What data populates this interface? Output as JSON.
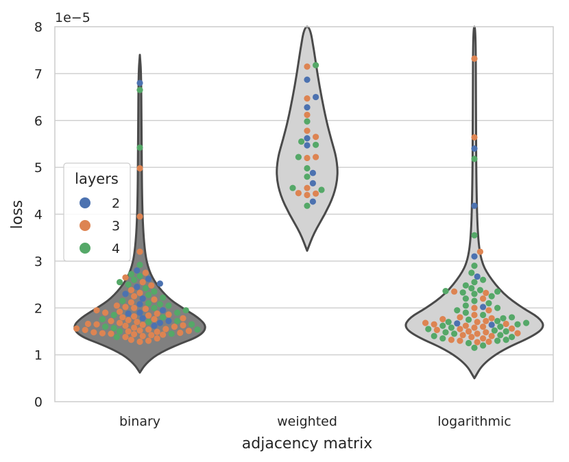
{
  "chart_data": {
    "type": "violin-swarm",
    "categories": [
      "binary",
      "weighted",
      "logarithmic"
    ],
    "xlabel": "adjacency matrix",
    "ylabel": "loss",
    "offset_label": "1e−5",
    "ylim": [
      0,
      8
    ],
    "yticks": [
      "0",
      "1",
      "2",
      "3",
      "4",
      "5",
      "6",
      "7",
      "8"
    ],
    "grid": true,
    "legend": {
      "title": "layers",
      "position": "left",
      "entries": [
        {
          "label": "2",
          "color": "#4c72b0"
        },
        {
          "label": "3",
          "color": "#dd8452"
        },
        {
          "label": "4",
          "color": "#55a868"
        }
      ]
    },
    "violins": [
      {
        "category": "binary",
        "fill": "#808080",
        "min": 0.62,
        "max": 7.4,
        "profile": [
          [
            0.62,
            0
          ],
          [
            0.8,
            8
          ],
          [
            1.0,
            24
          ],
          [
            1.2,
            52
          ],
          [
            1.4,
            88
          ],
          [
            1.6,
            98
          ],
          [
            1.8,
            85
          ],
          [
            2.0,
            62
          ],
          [
            2.2,
            42
          ],
          [
            2.5,
            24
          ],
          [
            2.8,
            13
          ],
          [
            3.2,
            7
          ],
          [
            4.0,
            3.5
          ],
          [
            5.5,
            2.5
          ],
          [
            7.0,
            2
          ],
          [
            7.4,
            0
          ]
        ]
      },
      {
        "category": "weighted",
        "fill": "#d3d3d3",
        "min": 3.22,
        "max": 8.0,
        "profile": [
          [
            3.22,
            0
          ],
          [
            3.6,
            10
          ],
          [
            4.0,
            26
          ],
          [
            4.4,
            39
          ],
          [
            4.8,
            45
          ],
          [
            5.2,
            43
          ],
          [
            5.6,
            35
          ],
          [
            6.0,
            28
          ],
          [
            6.5,
            21
          ],
          [
            7.0,
            15
          ],
          [
            7.5,
            10
          ],
          [
            8.0,
            4
          ]
        ]
      },
      {
        "category": "logarithmic",
        "fill": "#d3d3d3",
        "min": 0.5,
        "max": 8.0,
        "profile": [
          [
            0.5,
            0
          ],
          [
            0.8,
            12
          ],
          [
            1.1,
            40
          ],
          [
            1.4,
            86
          ],
          [
            1.6,
            103
          ],
          [
            1.8,
            94
          ],
          [
            2.0,
            70
          ],
          [
            2.3,
            42
          ],
          [
            2.7,
            20
          ],
          [
            3.0,
            10
          ],
          [
            3.5,
            5
          ],
          [
            4.5,
            3
          ],
          [
            6.0,
            2.2
          ],
          [
            8.0,
            2
          ]
        ]
      }
    ],
    "series": [
      {
        "name": "2",
        "color": "#4c72b0",
        "points": [
          {
            "category": "binary",
            "values": [
              6.8,
              2.8,
              2.62,
              2.52,
              2.45,
              2.3,
              2.2,
              2.08,
              1.95,
              1.9,
              1.88,
              1.78,
              1.72,
              1.68,
              1.62
            ]
          },
          {
            "category": "weighted",
            "values": [
              6.87,
              6.5,
              6.28,
              5.62,
              5.47,
              4.88,
              4.66,
              4.27
            ]
          },
          {
            "category": "logarithmic",
            "values": [
              5.4,
              4.18,
              3.1,
              2.67,
              2.02,
              1.67,
              1.64
            ]
          }
        ]
      },
      {
        "name": "3",
        "color": "#dd8452",
        "points": [
          {
            "category": "binary",
            "values": [
              4.98,
              3.95,
              3.2,
              2.75,
              2.65,
              2.55,
              2.48,
              2.38,
              2.32,
              2.25,
              2.18,
              2.12,
              2.05,
              2.02,
              2.0,
              1.98,
              1.95,
              1.92,
              1.9,
              1.88,
              1.86,
              1.84,
              1.82,
              1.8,
              1.78,
              1.76,
              1.74,
              1.72,
              1.7,
              1.68,
              1.66,
              1.65,
              1.64,
              1.63,
              1.62,
              1.6,
              1.58,
              1.56,
              1.55,
              1.54,
              1.53,
              1.52,
              1.51,
              1.5,
              1.49,
              1.48,
              1.47,
              1.46,
              1.45,
              1.44,
              1.43,
              1.42,
              1.4,
              1.38,
              1.35,
              1.32,
              1.3,
              1.28
            ]
          },
          {
            "category": "weighted",
            "values": [
              7.15,
              6.47,
              6.12,
              5.78,
              5.65,
              5.22,
              5.2,
              4.56,
              4.45,
              4.44,
              4.41
            ]
          },
          {
            "category": "logarithmic",
            "values": [
              7.32,
              5.64,
              3.2,
              2.35,
              2.32,
              2.2,
              2.0,
              1.95,
              1.85,
              1.8,
              1.78,
              1.76,
              1.72,
              1.7,
              1.68,
              1.66,
              1.65,
              1.62,
              1.6,
              1.58,
              1.56,
              1.55,
              1.53,
              1.5,
              1.48,
              1.46,
              1.45,
              1.42,
              1.4,
              1.38,
              1.35,
              1.32,
              1.3,
              1.28,
              1.27
            ]
          }
        ]
      },
      {
        "name": "4",
        "color": "#55a868",
        "points": [
          {
            "category": "binary",
            "values": [
              6.65,
              5.42,
              2.92,
              2.72,
              2.68,
              2.6,
              2.55,
              2.5,
              2.42,
              2.35,
              2.28,
              2.22,
              2.15,
              2.1,
              2.08,
              2.05,
              2.0,
              1.95,
              1.9,
              1.85,
              1.8,
              1.76,
              1.72,
              1.7,
              1.65,
              1.6,
              1.57,
              1.54,
              1.5,
              1.45,
              1.38
            ]
          },
          {
            "category": "weighted",
            "values": [
              7.18,
              5.98,
              5.55,
              5.48,
              5.22,
              4.98,
              4.8,
              4.56,
              4.52,
              4.18
            ]
          },
          {
            "category": "logarithmic",
            "values": [
              5.18,
              3.55,
              2.9,
              2.75,
              2.6,
              2.55,
              2.48,
              2.42,
              2.38,
              2.36,
              2.35,
              2.33,
              2.3,
              2.25,
              2.2,
              2.15,
              2.1,
              2.05,
              2.0,
              1.95,
              1.9,
              1.85,
              1.8,
              1.78,
              1.75,
              1.72,
              1.7,
              1.68,
              1.65,
              1.62,
              1.6,
              1.58,
              1.55,
              1.52,
              1.5,
              1.48,
              1.45,
              1.42,
              1.4,
              1.38,
              1.35,
              1.32,
              1.3,
              1.25,
              1.2,
              1.15
            ]
          }
        ]
      }
    ]
  }
}
